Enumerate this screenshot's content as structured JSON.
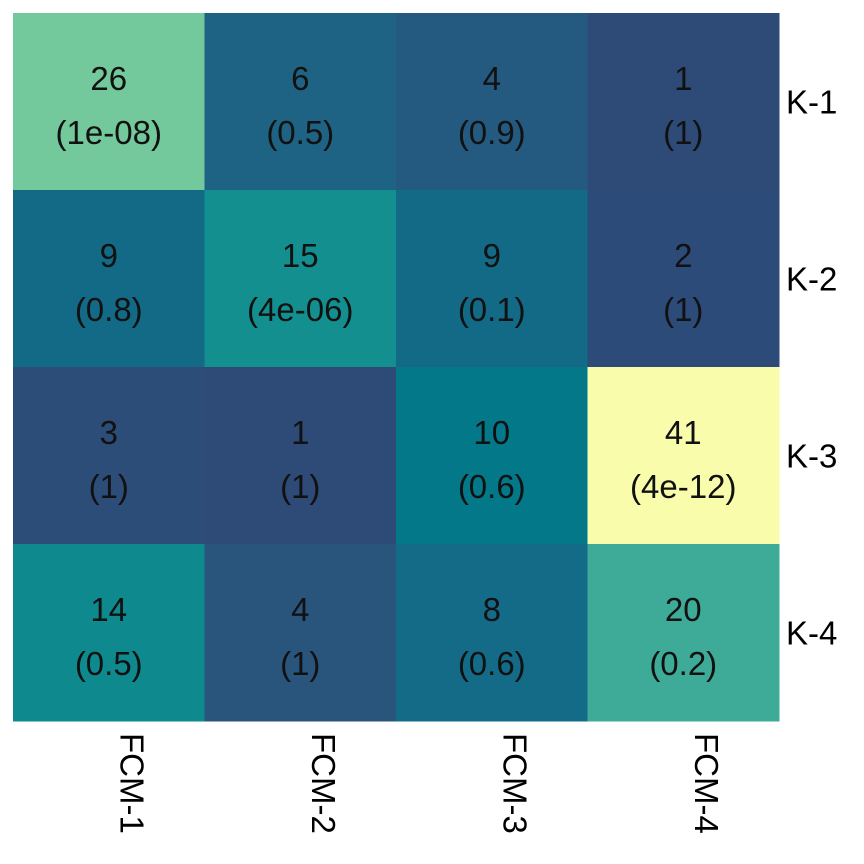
{
  "chart_data": {
    "type": "heatmap",
    "rows": [
      "K-1",
      "K-2",
      "K-3",
      "K-4"
    ],
    "columns": [
      "FCM-1",
      "FCM-2",
      "FCM-3",
      "FCM-4"
    ],
    "counts": [
      [
        26,
        6,
        4,
        1
      ],
      [
        9,
        15,
        9,
        2
      ],
      [
        3,
        1,
        10,
        41
      ],
      [
        14,
        4,
        8,
        20
      ]
    ],
    "pvalue_labels": [
      [
        "(1e-08)",
        "(0.5)",
        "(0.9)",
        "(1)"
      ],
      [
        "(0.8)",
        "(4e-06)",
        "(0.1)",
        "(1)"
      ],
      [
        "(1)",
        "(1)",
        "(0.6)",
        "(4e-12)"
      ],
      [
        "(0.5)",
        "(1)",
        "(0.6)",
        "(0.2)"
      ]
    ],
    "colors": [
      [
        "#73c89c",
        "#1f6384",
        "#245a80",
        "#2e4a77"
      ],
      [
        "#136a86",
        "#138f90",
        "#126a87",
        "#2c4b79"
      ],
      [
        "#2d4d79",
        "#2e4a77",
        "#027889",
        "#f8fcab"
      ],
      [
        "#0e8a8f",
        "#29557c",
        "#146b88",
        "#3dab98"
      ]
    ],
    "row_label_position": "right",
    "column_label_position": "bottom",
    "column_label_rotation": "vertical"
  }
}
